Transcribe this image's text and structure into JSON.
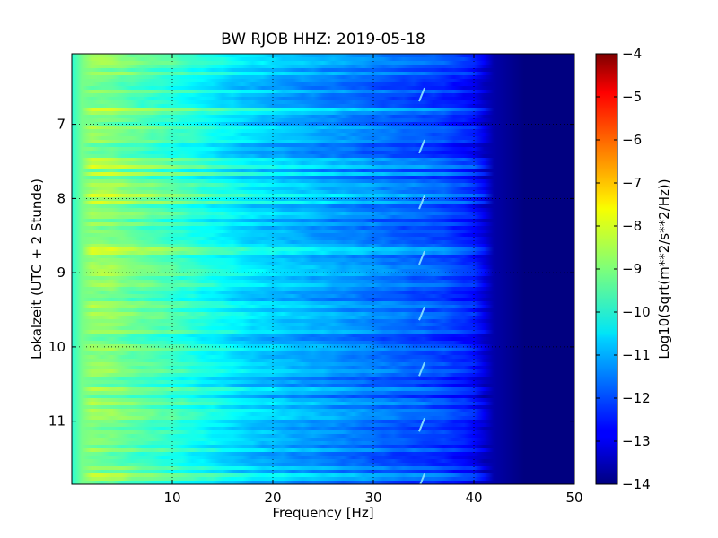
{
  "chart_data": {
    "type": "heatmap",
    "title": "BW RJOB HHZ: 2019-05-18",
    "xlabel": "Frequency [Hz]",
    "ylabel": "Lokalzeit (UTC + 2 Stunde)",
    "xlim": [
      0,
      50
    ],
    "ylim": [
      11.85,
      6.05
    ],
    "y_inverted": true,
    "x_ticks": [
      10,
      20,
      30,
      40,
      50
    ],
    "x_tick_labels": [
      "10",
      "20",
      "30",
      "40",
      "50"
    ],
    "y_ticks": [
      7,
      8,
      9,
      10,
      11
    ],
    "y_tick_labels": [
      "7",
      "8",
      "9",
      "10",
      "11"
    ],
    "grid": true,
    "colormap": "jet",
    "colorbar": {
      "label": "Log10(Sqrt(m**2/s**2/Hz))",
      "range": [
        -14,
        -4
      ],
      "ticks": [
        -4,
        -5,
        -6,
        -7,
        -8,
        -9,
        -10,
        -11,
        -12,
        -13,
        -14
      ],
      "tick_labels": [
        "−4",
        "−5",
        "−6",
        "−7",
        "−8",
        "−9",
        "−10",
        "−11",
        "−12",
        "−13",
        "−14"
      ]
    },
    "spectrum_profile": {
      "frequency_hz": [
        0,
        1,
        2,
        4,
        6,
        8,
        10,
        14,
        18,
        22,
        26,
        30,
        34,
        37,
        40,
        42,
        45,
        50
      ],
      "log10_amplitude": [
        -9.9,
        -9.1,
        -8.9,
        -9.0,
        -9.3,
        -9.5,
        -9.7,
        -10.2,
        -10.7,
        -11.0,
        -11.3,
        -11.6,
        -11.9,
        -12.1,
        -12.6,
        -13.6,
        -14,
        -14
      ]
    },
    "narrowband_feature": {
      "frequency_hz": 35,
      "description": ""
    }
  }
}
